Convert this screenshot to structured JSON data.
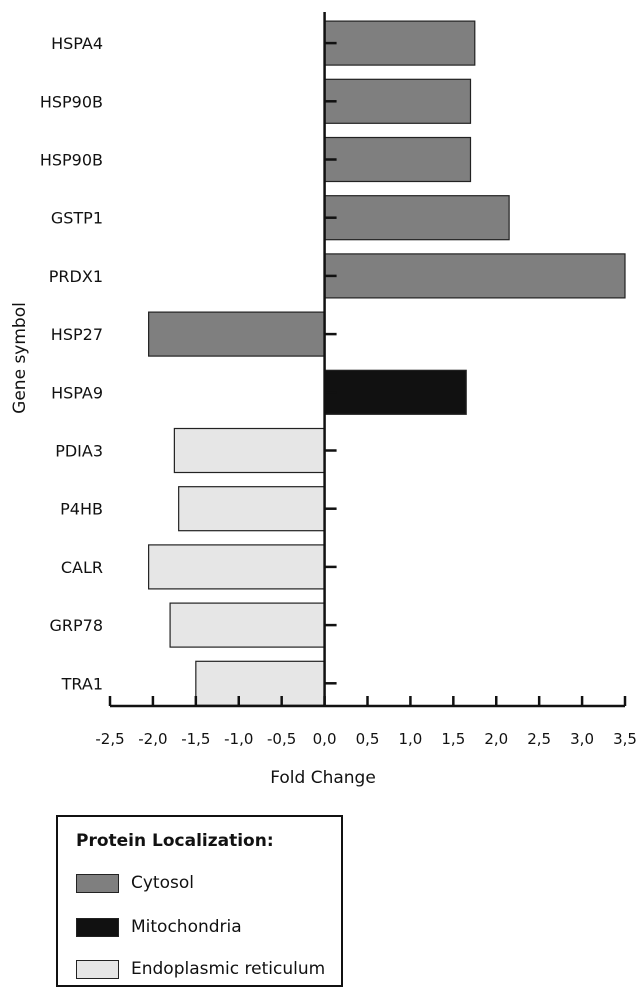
{
  "chart_data": {
    "type": "bar",
    "orientation": "horizontal",
    "title": "",
    "xlabel": "Fold Change",
    "ylabel": "Gene symbol",
    "categories": [
      "HSPA4",
      "HSP90B",
      "HSP90B",
      "GSTP1",
      "PRDX1",
      "HSP27",
      "HSPA9",
      "PDIA3",
      "P4HB",
      "CALR",
      "GRP78",
      "TRA1"
    ],
    "values": [
      1.75,
      1.7,
      1.7,
      2.15,
      3.5,
      -2.05,
      1.65,
      -1.75,
      -1.7,
      -2.05,
      -1.8,
      -1.5
    ],
    "localization": [
      "Cytosol",
      "Cytosol",
      "Cytosol",
      "Cytosol",
      "Cytosol",
      "Cytosol",
      "Mitochondria",
      "Endoplasmic reticulum",
      "Endoplasmic reticulum",
      "Endoplasmic reticulum",
      "Endoplasmic reticulum",
      "Endoplasmic reticulum"
    ],
    "xlim": [
      -2.5,
      3.5
    ],
    "xticks": [
      -2.5,
      -2.0,
      -1.5,
      -1.0,
      -0.5,
      0.0,
      0.5,
      1.0,
      1.5,
      2.0,
      2.5,
      3.0,
      3.5
    ],
    "xtick_labels": [
      "-2,5",
      "-2,0",
      "-1,5",
      "-1,0",
      "-0,5",
      "0,0",
      "0,5",
      "1,0",
      "1,5",
      "2,0",
      "2,5",
      "3,0",
      "3,5"
    ],
    "grid": false,
    "legend_position": "bottom-left"
  },
  "legend": {
    "title": "Protein Localization:",
    "items": [
      {
        "label": "Cytosol",
        "color": "#7f7f7f"
      },
      {
        "label": "Mitochondria",
        "color": "#111111"
      },
      {
        "label": "Endoplasmic reticulum",
        "color": "#e6e6e6"
      }
    ]
  }
}
